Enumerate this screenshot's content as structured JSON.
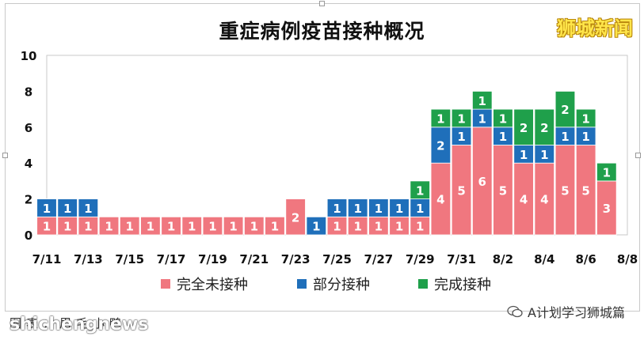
{
  "brand": "狮城新闻",
  "footer": {
    "credit": "图表：眉毛小鸭",
    "watermark": "shichengnews",
    "wechat": "A计划学习狮城篇"
  },
  "colors": {
    "unvaccinated": "#f0777f",
    "partial": "#1f6fba",
    "full": "#1fa04b"
  },
  "chart_data": {
    "type": "bar",
    "stacked": true,
    "title": "重症病例疫苗接种概况",
    "xlabel": "",
    "ylabel": "",
    "ylim": [
      0,
      10
    ],
    "yticks": [
      "0",
      "2",
      "4",
      "6",
      "8",
      "10"
    ],
    "grid": false,
    "legend_position": "bottom",
    "categories": [
      "7/11",
      "7/12",
      "7/13",
      "7/14",
      "7/15",
      "7/16",
      "7/17",
      "7/18",
      "7/19",
      "7/20",
      "7/21",
      "7/22",
      "7/23",
      "7/24",
      "7/25",
      "7/26",
      "7/27",
      "7/28",
      "7/29",
      "7/30",
      "7/31",
      "8/1",
      "8/2",
      "8/3",
      "8/4",
      "8/5",
      "8/6",
      "8/7",
      "8/8"
    ],
    "xtick_labels": [
      "7/11",
      "7/13",
      "7/15",
      "7/17",
      "7/19",
      "7/21",
      "7/23",
      "7/25",
      "7/27",
      "7/29",
      "7/31",
      "8/2",
      "8/4",
      "8/6",
      "8/8"
    ],
    "series": [
      {
        "name": "完全未接种",
        "values": [
          1,
          1,
          1,
          1,
          1,
          1,
          1,
          1,
          1,
          1,
          1,
          1,
          2,
          0,
          1,
          1,
          1,
          1,
          1,
          4,
          5,
          6,
          5,
          4,
          4,
          5,
          5,
          3,
          0
        ]
      },
      {
        "name": "部分接种",
        "values": [
          1,
          1,
          1,
          0,
          0,
          0,
          0,
          0,
          0,
          0,
          0,
          0,
          0,
          1,
          1,
          1,
          1,
          1,
          1,
          2,
          1,
          1,
          1,
          1,
          1,
          1,
          1,
          0,
          0
        ]
      },
      {
        "name": "完成接种",
        "values": [
          0,
          0,
          0,
          0,
          0,
          0,
          0,
          0,
          0,
          0,
          0,
          0,
          0,
          0,
          0,
          0,
          0,
          0,
          1,
          1,
          1,
          1,
          1,
          2,
          2,
          2,
          1,
          1,
          0
        ]
      }
    ]
  }
}
